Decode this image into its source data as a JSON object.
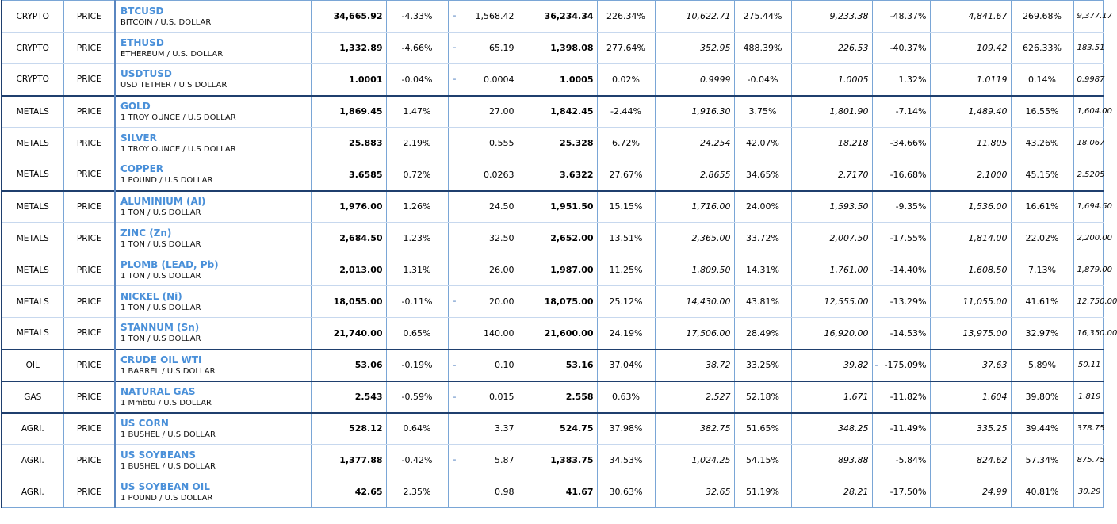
{
  "rows": [
    {
      "cat": "CRYPTO",
      "type": "PRICE",
      "sym": "BTCUSD",
      "desc": "BITCOIN / U.S. DOLLAR",
      "last": "34,665.92",
      "pct": "-4.33%",
      "pct_dir": "down",
      "chg": "1,568.42",
      "chg_dir": "down",
      "chg_dash": "-",
      "prev": "36,234.34",
      "p1": "226.34%",
      "p1_dir": "up",
      "v1": "10,622.71",
      "p2": "275.44%",
      "p2_dir": "up",
      "v2": "9,233.38",
      "p3": "-48.37%",
      "p3_dir": "down",
      "p3_dash": "",
      "v3": "4,841.67",
      "p4": "269.68%",
      "p4_dir": "up",
      "v4": "9,377.17",
      "grp": false
    },
    {
      "cat": "CRYPTO",
      "type": "PRICE",
      "sym": "ETHUSD",
      "desc": "ETHEREUM / U.S. DOLLAR",
      "last": "1,332.89",
      "pct": "-4.66%",
      "pct_dir": "down",
      "chg": "65.19",
      "chg_dir": "down",
      "chg_dash": "-",
      "prev": "1,398.08",
      "p1": "277.64%",
      "p1_dir": "up",
      "v1": "352.95",
      "p2": "488.39%",
      "p2_dir": "up",
      "v2": "226.53",
      "p3": "-40.37%",
      "p3_dir": "down",
      "p3_dash": "",
      "v3": "109.42",
      "p4": "626.33%",
      "p4_dir": "up",
      "v4": "183.51",
      "grp": false
    },
    {
      "cat": "CRYPTO",
      "type": "PRICE",
      "sym": "USDTUSD",
      "desc": "USD TETHER / U.S DOLLAR",
      "last": "1.0001",
      "pct": "-0.04%",
      "pct_dir": "down",
      "chg": "0.0004",
      "chg_dir": "down",
      "chg_dash": "-",
      "prev": "1.0005",
      "p1": "0.02%",
      "p1_dir": "up",
      "v1": "0.9999",
      "p2": "-0.04%",
      "p2_dir": "down",
      "v2": "1.0005",
      "p3": "1.32%",
      "p3_dir": "up",
      "p3_dash": "",
      "v3": "1.0119",
      "p4": "0.14%",
      "p4_dir": "up",
      "v4": "0.9987",
      "grp": false
    },
    {
      "cat": "METALS",
      "type": "PRICE",
      "sym": "GOLD",
      "desc": "1 TROY OUNCE / U.S DOLLAR",
      "last": "1,869.45",
      "pct": "1.47%",
      "pct_dir": "up",
      "chg": "27.00",
      "chg_dir": "up",
      "chg_dash": "",
      "prev": "1,842.45",
      "p1": "-2.44%",
      "p1_dir": "down",
      "v1": "1,916.30",
      "p2": "3.75%",
      "p2_dir": "up",
      "v2": "1,801.90",
      "p3": "-7.14%",
      "p3_dir": "down",
      "p3_dash": "",
      "v3": "1,489.40",
      "p4": "16.55%",
      "p4_dir": "up",
      "v4": "1,604.00",
      "grp": true
    },
    {
      "cat": "METALS",
      "type": "PRICE",
      "sym": "SILVER",
      "desc": "1 TROY OUNCE / U.S DOLLAR",
      "last": "25.883",
      "pct": "2.19%",
      "pct_dir": "up",
      "chg": "0.555",
      "chg_dir": "up",
      "chg_dash": "",
      "prev": "25.328",
      "p1": "6.72%",
      "p1_dir": "up",
      "v1": "24.254",
      "p2": "42.07%",
      "p2_dir": "up",
      "v2": "18.218",
      "p3": "-34.66%",
      "p3_dir": "down",
      "p3_dash": "",
      "v3": "11.805",
      "p4": "43.26%",
      "p4_dir": "up",
      "v4": "18.067",
      "grp": false
    },
    {
      "cat": "METALS",
      "type": "PRICE",
      "sym": "COPPER",
      "desc": "1 POUND / U.S DOLLAR",
      "last": "3.6585",
      "pct": "0.72%",
      "pct_dir": "up",
      "chg": "0.0263",
      "chg_dir": "up",
      "chg_dash": "",
      "prev": "3.6322",
      "p1": "27.67%",
      "p1_dir": "up",
      "v1": "2.8655",
      "p2": "34.65%",
      "p2_dir": "up",
      "v2": "2.7170",
      "p3": "-16.68%",
      "p3_dir": "down",
      "p3_dash": "",
      "v3": "2.1000",
      "p4": "45.15%",
      "p4_dir": "up",
      "v4": "2.5205",
      "grp": false
    },
    {
      "cat": "METALS",
      "type": "PRICE",
      "sym": "ALUMINIUM (Al)",
      "desc": "1 TON / U.S DOLLAR",
      "last": "1,976.00",
      "pct": "1.26%",
      "pct_dir": "up",
      "chg": "24.50",
      "chg_dir": "up",
      "chg_dash": "",
      "prev": "1,951.50",
      "p1": "15.15%",
      "p1_dir": "up",
      "v1": "1,716.00",
      "p2": "24.00%",
      "p2_dir": "up",
      "v2": "1,593.50",
      "p3": "-9.35%",
      "p3_dir": "down",
      "p3_dash": "",
      "v3": "1,536.00",
      "p4": "16.61%",
      "p4_dir": "up",
      "v4": "1,694.50",
      "grp": true
    },
    {
      "cat": "METALS",
      "type": "PRICE",
      "sym": "ZINC (Zn)",
      "desc": "1 TON / U.S DOLLAR",
      "last": "2,684.50",
      "pct": "1.23%",
      "pct_dir": "up",
      "chg": "32.50",
      "chg_dir": "up",
      "chg_dash": "",
      "prev": "2,652.00",
      "p1": "13.51%",
      "p1_dir": "up",
      "v1": "2,365.00",
      "p2": "33.72%",
      "p2_dir": "up",
      "v2": "2,007.50",
      "p3": "-17.55%",
      "p3_dir": "down",
      "p3_dash": "",
      "v3": "1,814.00",
      "p4": "22.02%",
      "p4_dir": "up",
      "v4": "2,200.00",
      "grp": false
    },
    {
      "cat": "METALS",
      "type": "PRICE",
      "sym": "PLOMB (LEAD, Pb)",
      "desc": "1 TON / U.S DOLLAR",
      "last": "2,013.00",
      "pct": "1.31%",
      "pct_dir": "up",
      "chg": "26.00",
      "chg_dir": "up",
      "chg_dash": "",
      "prev": "1,987.00",
      "p1": "11.25%",
      "p1_dir": "up",
      "v1": "1,809.50",
      "p2": "14.31%",
      "p2_dir": "up",
      "v2": "1,761.00",
      "p3": "-14.40%",
      "p3_dir": "down",
      "p3_dash": "",
      "v3": "1,608.50",
      "p4": "7.13%",
      "p4_dir": "up",
      "v4": "1,879.00",
      "grp": false
    },
    {
      "cat": "METALS",
      "type": "PRICE",
      "sym": "NICKEL (Ni)",
      "desc": "1 TON / U.S DOLLAR",
      "last": "18,055.00",
      "pct": "-0.11%",
      "pct_dir": "down",
      "chg": "20.00",
      "chg_dir": "down",
      "chg_dash": "-",
      "prev": "18,075.00",
      "p1": "25.12%",
      "p1_dir": "up",
      "v1": "14,430.00",
      "p2": "43.81%",
      "p2_dir": "up",
      "v2": "12,555.00",
      "p3": "-13.29%",
      "p3_dir": "down",
      "p3_dash": "",
      "v3": "11,055.00",
      "p4": "41.61%",
      "p4_dir": "up",
      "v4": "12,750.00",
      "grp": false
    },
    {
      "cat": "METALS",
      "type": "PRICE",
      "sym": "STANNUM (Sn)",
      "desc": "1 TON / U.S DOLLAR",
      "last": "21,740.00",
      "pct": "0.65%",
      "pct_dir": "up",
      "chg": "140.00",
      "chg_dir": "up",
      "chg_dash": "",
      "prev": "21,600.00",
      "p1": "24.19%",
      "p1_dir": "up",
      "v1": "17,506.00",
      "p2": "28.49%",
      "p2_dir": "up",
      "v2": "16,920.00",
      "p3": "-14.53%",
      "p3_dir": "down",
      "p3_dash": "",
      "v3": "13,975.00",
      "p4": "32.97%",
      "p4_dir": "up",
      "v4": "16,350.00",
      "grp": false
    },
    {
      "cat": "OIL",
      "type": "PRICE",
      "sym": "CRUDE OIL WTI",
      "desc": "1 BARREL / U.S DOLLAR",
      "last": "53.06",
      "pct": "-0.19%",
      "pct_dir": "down",
      "chg": "0.10",
      "chg_dir": "down",
      "chg_dash": "-",
      "prev": "53.16",
      "p1": "37.04%",
      "p1_dir": "up",
      "v1": "38.72",
      "p2": "33.25%",
      "p2_dir": "up",
      "v2": "39.82",
      "p3": "-175.09%",
      "p3_dir": "down",
      "p3_dash": "-",
      "v3": "37.63",
      "p4": "5.89%",
      "p4_dir": "up",
      "v4": "50.11",
      "grp": true
    },
    {
      "cat": "GAS",
      "type": "PRICE",
      "sym": "NATURAL GAS",
      "desc": "1 Mmbtu / U.S DOLLAR",
      "last": "2.543",
      "pct": "-0.59%",
      "pct_dir": "down",
      "chg": "0.015",
      "chg_dir": "down",
      "chg_dash": "-",
      "prev": "2.558",
      "p1": "0.63%",
      "p1_dir": "up",
      "v1": "2.527",
      "p2": "52.18%",
      "p2_dir": "up",
      "v2": "1.671",
      "p3": "-11.82%",
      "p3_dir": "down",
      "p3_dash": "",
      "v3": "1.604",
      "p4": "39.80%",
      "p4_dir": "up",
      "v4": "1.819",
      "grp": true
    },
    {
      "cat": "AGRI.",
      "type": "PRICE",
      "sym": "US CORN",
      "desc": "1 BUSHEL / U.S DOLLAR",
      "last": "528.12",
      "pct": "0.64%",
      "pct_dir": "up",
      "chg": "3.37",
      "chg_dir": "up",
      "chg_dash": "",
      "prev": "524.75",
      "p1": "37.98%",
      "p1_dir": "up",
      "v1": "382.75",
      "p2": "51.65%",
      "p2_dir": "up",
      "v2": "348.25",
      "p3": "-11.49%",
      "p3_dir": "down",
      "p3_dash": "",
      "v3": "335.25",
      "p4": "39.44%",
      "p4_dir": "up",
      "v4": "378.75",
      "grp": true
    },
    {
      "cat": "AGRI.",
      "type": "PRICE",
      "sym": "US SOYBEANS",
      "desc": "1 BUSHEL / U.S DOLLAR",
      "last": "1,377.88",
      "pct": "-0.42%",
      "pct_dir": "down",
      "chg": "5.87",
      "chg_dir": "down",
      "chg_dash": "-",
      "prev": "1,383.75",
      "p1": "34.53%",
      "p1_dir": "up",
      "v1": "1,024.25",
      "p2": "54.15%",
      "p2_dir": "up",
      "v2": "893.88",
      "p3": "-5.84%",
      "p3_dir": "down",
      "p3_dash": "",
      "v3": "824.62",
      "p4": "57.34%",
      "p4_dir": "up",
      "v4": "875.75",
      "grp": false
    },
    {
      "cat": "AGRI.",
      "type": "PRICE",
      "sym": "US SOYBEAN OIL",
      "desc": "1 POUND / U.S DOLLAR",
      "last": "42.65",
      "pct": "2.35%",
      "pct_dir": "up",
      "chg": "0.98",
      "chg_dir": "up",
      "chg_dash": "",
      "prev": "41.67",
      "p1": "30.63%",
      "p1_dir": "up",
      "v1": "32.65",
      "p2": "51.19%",
      "p2_dir": "up",
      "v2": "28.21",
      "p3": "-17.50%",
      "p3_dir": "down",
      "p3_dash": "",
      "v3": "24.99",
      "p4": "40.81%",
      "p4_dir": "up",
      "v4": "30.29",
      "grp": false
    }
  ],
  "colors": {
    "up": "#e8141e",
    "down": "#3d72b8",
    "symbol": "#4a90d9",
    "border": "#7aa6d6",
    "group_border": "#1f3f6e"
  }
}
